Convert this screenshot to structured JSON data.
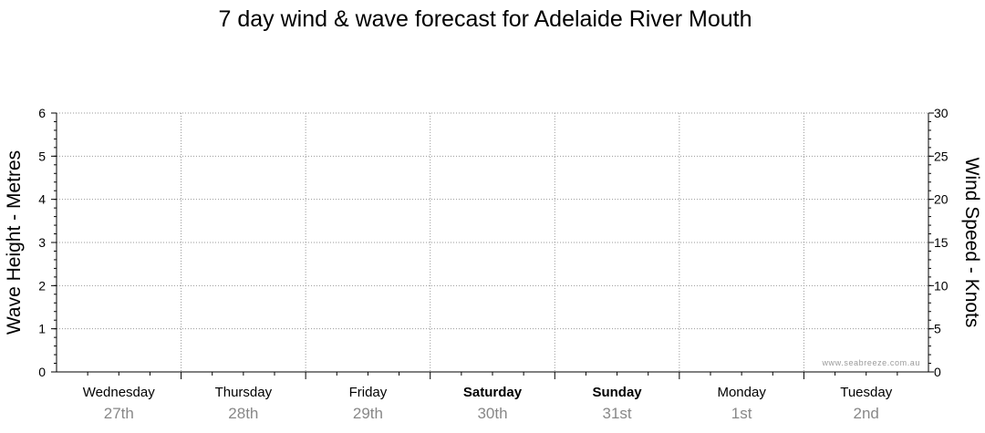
{
  "chart_data": {
    "type": "line",
    "title": "7 day wind & wave forecast for Adelaide River Mouth",
    "ylabel_left": "Wave Height - Metres",
    "ylabel_right": "Wind Speed - Knots",
    "ylim_left": [
      0,
      6
    ],
    "ylim_right": [
      0,
      30
    ],
    "yticks_left": [
      "0",
      "1",
      "2",
      "3",
      "4",
      "5",
      "6"
    ],
    "yticks_right": [
      "0",
      "5",
      "10",
      "15",
      "20",
      "25",
      "30"
    ],
    "days": [
      {
        "name": "Wednesday",
        "date": "27th",
        "bold": false
      },
      {
        "name": "Thursday",
        "date": "28th",
        "bold": false
      },
      {
        "name": "Friday",
        "date": "29th",
        "bold": false
      },
      {
        "name": "Saturday",
        "date": "30th",
        "bold": true
      },
      {
        "name": "Sunday",
        "date": "31st",
        "bold": true
      },
      {
        "name": "Monday",
        "date": "1st",
        "bold": false
      },
      {
        "name": "Tuesday",
        "date": "2nd",
        "bold": false
      }
    ],
    "series": [],
    "grid": true,
    "watermark": "www.seabreeze.com.au"
  }
}
